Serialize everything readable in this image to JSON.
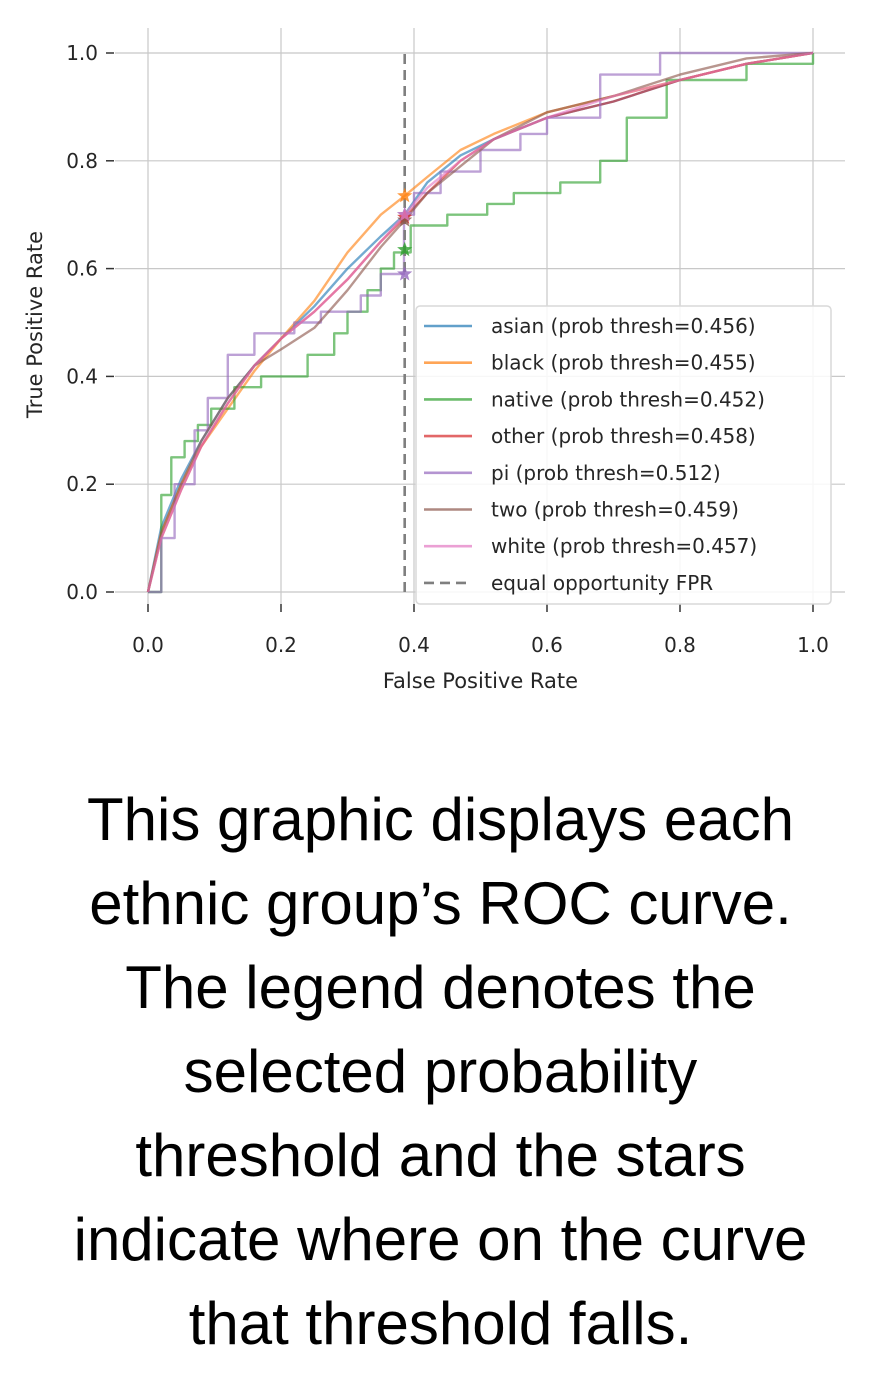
{
  "chart_data": {
    "type": "line",
    "title": "",
    "xlabel": "False Positive Rate",
    "ylabel": "True Positive Rate",
    "xlim": [
      0.0,
      1.0
    ],
    "ylim": [
      0.0,
      1.0
    ],
    "xticks": [
      "0.0",
      "0.2",
      "0.4",
      "0.6",
      "0.8",
      "1.0"
    ],
    "yticks": [
      "0.0",
      "0.2",
      "0.4",
      "0.6",
      "0.8",
      "1.0"
    ],
    "grid": true,
    "legend_position": "lower-right",
    "series": [
      {
        "name": "asian (prob thresh=0.456)",
        "color": "#1f77b4",
        "step": false,
        "x": [
          0,
          0.02,
          0.05,
          0.08,
          0.12,
          0.16,
          0.2,
          0.25,
          0.3,
          0.35,
          0.386,
          0.42,
          0.47,
          0.52,
          0.6,
          0.7,
          0.8,
          0.9,
          1.0
        ],
        "y": [
          0,
          0.12,
          0.21,
          0.28,
          0.36,
          0.42,
          0.47,
          0.53,
          0.6,
          0.66,
          0.7,
          0.76,
          0.81,
          0.84,
          0.88,
          0.91,
          0.95,
          0.98,
          1.0
        ],
        "star": [
          0.386,
          0.7
        ]
      },
      {
        "name": "black (prob thresh=0.455)",
        "color": "#ff7f0e",
        "step": false,
        "x": [
          0,
          0.02,
          0.05,
          0.08,
          0.12,
          0.16,
          0.2,
          0.25,
          0.3,
          0.35,
          0.386,
          0.42,
          0.47,
          0.52,
          0.6,
          0.7,
          0.8,
          0.9,
          1.0
        ],
        "y": [
          0,
          0.11,
          0.2,
          0.27,
          0.34,
          0.41,
          0.47,
          0.54,
          0.63,
          0.7,
          0.735,
          0.77,
          0.82,
          0.85,
          0.89,
          0.92,
          0.95,
          0.98,
          1.0
        ],
        "star": [
          0.386,
          0.735
        ]
      },
      {
        "name": "native (prob thresh=0.452)",
        "color": "#2ca02c",
        "step": true,
        "x": [
          0,
          0.02,
          0.035,
          0.055,
          0.075,
          0.095,
          0.13,
          0.17,
          0.24,
          0.28,
          0.3,
          0.33,
          0.35,
          0.37,
          0.395,
          0.45,
          0.51,
          0.55,
          0.62,
          0.68,
          0.72,
          0.78,
          0.9,
          0.99,
          1.0
        ],
        "y": [
          0,
          0.18,
          0.25,
          0.28,
          0.31,
          0.34,
          0.38,
          0.4,
          0.44,
          0.48,
          0.52,
          0.56,
          0.6,
          0.63,
          0.68,
          0.7,
          0.72,
          0.74,
          0.76,
          0.8,
          0.88,
          0.95,
          0.98,
          0.98,
          1.0
        ],
        "star": [
          0.386,
          0.635
        ]
      },
      {
        "name": "other (prob thresh=0.458)",
        "color": "#d62728",
        "step": false,
        "x": [
          0,
          0.02,
          0.05,
          0.08,
          0.12,
          0.16,
          0.2,
          0.25,
          0.3,
          0.35,
          0.386,
          0.42,
          0.47,
          0.52,
          0.6,
          0.7,
          0.8,
          0.9,
          1.0
        ],
        "y": [
          0,
          0.1,
          0.19,
          0.27,
          0.35,
          0.42,
          0.47,
          0.52,
          0.58,
          0.65,
          0.695,
          0.74,
          0.8,
          0.84,
          0.88,
          0.91,
          0.95,
          0.98,
          1.0
        ],
        "star": [
          0.386,
          0.695
        ]
      },
      {
        "name": "pi (prob thresh=0.512)",
        "color": "#9467bd",
        "step": true,
        "x": [
          0,
          0.02,
          0.04,
          0.07,
          0.09,
          0.12,
          0.16,
          0.22,
          0.26,
          0.29,
          0.32,
          0.35,
          0.385,
          0.4,
          0.44,
          0.5,
          0.56,
          0.6,
          0.68,
          0.77,
          0.9,
          1.0
        ],
        "y": [
          0,
          0.1,
          0.2,
          0.3,
          0.36,
          0.44,
          0.48,
          0.5,
          0.52,
          0.52,
          0.55,
          0.59,
          0.7,
          0.74,
          0.78,
          0.82,
          0.85,
          0.88,
          0.96,
          1.0,
          1.0,
          1.0
        ],
        "star": [
          0.386,
          0.59
        ]
      },
      {
        "name": "two (prob thresh=0.459)",
        "color": "#8c564b",
        "step": false,
        "x": [
          0,
          0.02,
          0.05,
          0.08,
          0.12,
          0.16,
          0.2,
          0.25,
          0.3,
          0.35,
          0.386,
          0.42,
          0.47,
          0.52,
          0.6,
          0.7,
          0.8,
          0.9,
          1.0
        ],
        "y": [
          0,
          0.11,
          0.2,
          0.28,
          0.36,
          0.42,
          0.45,
          0.49,
          0.56,
          0.64,
          0.69,
          0.74,
          0.79,
          0.84,
          0.89,
          0.92,
          0.96,
          0.99,
          1.0
        ],
        "star": [
          0.386,
          0.69
        ]
      },
      {
        "name": "white (prob thresh=0.457)",
        "color": "#e377c2",
        "step": false,
        "x": [
          0,
          0.02,
          0.05,
          0.08,
          0.12,
          0.16,
          0.2,
          0.25,
          0.3,
          0.35,
          0.386,
          0.42,
          0.47,
          0.52,
          0.6,
          0.7,
          0.8,
          0.9,
          1.0
        ],
        "y": [
          0,
          0.1,
          0.19,
          0.27,
          0.35,
          0.42,
          0.47,
          0.52,
          0.58,
          0.65,
          0.7,
          0.75,
          0.8,
          0.84,
          0.88,
          0.92,
          0.95,
          0.98,
          1.0
        ],
        "star": [
          0.386,
          0.7
        ]
      }
    ],
    "reference_line": {
      "name": "equal opportunity FPR",
      "x": 0.386,
      "color": "#7f7f7f",
      "style": "dashed"
    }
  },
  "caption": {
    "lines": [
      "This graphic displays each",
      "ethnic group’s ROC curve.",
      "The legend denotes the",
      "selected probability",
      "threshold and the stars",
      "indicate where on the curve",
      "that threshold falls."
    ]
  }
}
